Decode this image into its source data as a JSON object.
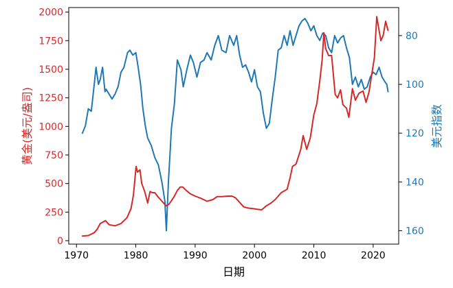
{
  "colors": {
    "gold": "#d62728",
    "dxy": "#1f77b4",
    "frame": "#000000",
    "background": "#ffffff"
  },
  "chart_data": {
    "type": "line",
    "xlabel": "日期",
    "ylabel_left": "黄金(美元/盎司)",
    "ylabel_right": "美元指数",
    "xlim": [
      1968.7,
      2024.3
    ],
    "ylim_left": [
      -30,
      2040
    ],
    "ylim_right": [
      165.5,
      68.5
    ],
    "right_axis_inverted": true,
    "grid": false,
    "legend": "none",
    "x_ticks": [
      1970,
      1980,
      1990,
      2000,
      2010,
      2020
    ],
    "x_tick_labels": [
      "1970",
      "1980",
      "1990",
      "2000",
      "2010",
      "2020"
    ],
    "y_left_ticks": [
      0,
      250,
      500,
      750,
      1000,
      1250,
      1500,
      1750,
      2000
    ],
    "y_left_tick_labels": [
      "0",
      "250",
      "500",
      "750",
      "1000",
      "1250",
      "1500",
      "1750",
      "2000"
    ],
    "y_right_ticks": [
      80,
      100,
      120,
      140,
      160
    ],
    "y_right_tick_labels": [
      "80",
      "100",
      "120",
      "140",
      "160"
    ],
    "series": [
      {
        "color_key": "gold",
        "axis": "left",
        "x": [
          1971.0,
          1972.0,
          1973.0,
          1973.5,
          1974.0,
          1974.9,
          1975.5,
          1976.5,
          1977.5,
          1978.5,
          1979.2,
          1979.6,
          1980.05,
          1980.3,
          1980.7,
          1981.0,
          1981.5,
          1982.0,
          1982.4,
          1982.8,
          1983.2,
          1983.8,
          1984.5,
          1985.1,
          1985.6,
          1986.0,
          1986.5,
          1987.0,
          1987.5,
          1987.9,
          1988.5,
          1989.2,
          1990.0,
          1991.0,
          1992.0,
          1993.0,
          1993.7,
          1994.5,
          1995.5,
          1996.2,
          1996.8,
          1997.5,
          1998.2,
          1999.0,
          1999.8,
          2000.5,
          2001.2,
          2002.0,
          2002.8,
          2003.5,
          2004.5,
          2005.5,
          2006.0,
          2006.4,
          2007.0,
          2007.8,
          2008.2,
          2008.8,
          2009.4,
          2010.0,
          2010.5,
          2011.0,
          2011.4,
          2011.7,
          2012.0,
          2012.5,
          2013.0,
          2013.3,
          2013.6,
          2014.0,
          2014.5,
          2014.9,
          2015.5,
          2015.9,
          2016.5,
          2017.0,
          2017.6,
          2018.3,
          2018.8,
          2019.3,
          2019.8,
          2020.2,
          2020.6,
          2020.9,
          2021.3,
          2021.7,
          2022.1,
          2022.5
        ],
        "values": [
          40,
          45,
          70,
          100,
          150,
          175,
          140,
          130,
          150,
          200,
          280,
          400,
          650,
          600,
          620,
          500,
          430,
          330,
          430,
          420,
          420,
          380,
          340,
          305,
          320,
          350,
          390,
          440,
          470,
          470,
          440,
          410,
          390,
          370,
          345,
          360,
          385,
          385,
          390,
          390,
          375,
          335,
          295,
          285,
          280,
          275,
          270,
          305,
          330,
          360,
          420,
          450,
          550,
          650,
          670,
          800,
          920,
          800,
          900,
          1100,
          1200,
          1400,
          1580,
          1820,
          1680,
          1620,
          1620,
          1450,
          1280,
          1250,
          1320,
          1190,
          1160,
          1080,
          1330,
          1230,
          1290,
          1310,
          1210,
          1300,
          1470,
          1600,
          1960,
          1870,
          1750,
          1800,
          1920,
          1840
        ]
      },
      {
        "color_key": "dxy",
        "axis": "right",
        "x": [
          1971.0,
          1971.5,
          1972.0,
          1972.5,
          1973.0,
          1973.3,
          1973.7,
          1974.0,
          1974.4,
          1974.8,
          1975.0,
          1975.5,
          1976.0,
          1976.5,
          1977.0,
          1977.5,
          1978.0,
          1978.6,
          1979.0,
          1979.5,
          1980.0,
          1980.4,
          1980.8,
          1981.2,
          1981.6,
          1982.0,
          1982.6,
          1983.2,
          1983.8,
          1984.4,
          1984.9,
          1985.15,
          1985.5,
          1986.0,
          1986.5,
          1987.0,
          1987.6,
          1988.0,
          1988.6,
          1989.2,
          1989.7,
          1990.3,
          1990.9,
          1991.5,
          1992.0,
          1992.7,
          1993.3,
          1993.9,
          1994.5,
          1995.2,
          1995.8,
          1996.5,
          1997.0,
          1997.5,
          1998.0,
          1998.5,
          1999.0,
          1999.5,
          2000.0,
          2000.5,
          2001.0,
          2001.5,
          2002.0,
          2002.5,
          2003.0,
          2003.5,
          2004.0,
          2004.5,
          2005.0,
          2005.5,
          2006.0,
          2006.5,
          2007.0,
          2007.5,
          2008.0,
          2008.5,
          2009.0,
          2009.5,
          2010.0,
          2010.5,
          2011.0,
          2011.5,
          2012.0,
          2012.5,
          2013.0,
          2013.5,
          2014.0,
          2014.5,
          2015.0,
          2015.5,
          2016.0,
          2016.5,
          2017.0,
          2017.5,
          2018.0,
          2018.5,
          2019.0,
          2019.5,
          2020.0,
          2020.5,
          2021.0,
          2021.5,
          2022.0,
          2022.3,
          2022.5
        ],
        "values": [
          120,
          117,
          110,
          111,
          100,
          93,
          100,
          98,
          93,
          103,
          102,
          104,
          106,
          104,
          101,
          95,
          93,
          87,
          86,
          88,
          87,
          93,
          100,
          110,
          117,
          122,
          125,
          130,
          133,
          140,
          148,
          160,
          140,
          118,
          108,
          90,
          94,
          101,
          94,
          88,
          91,
          97,
          91,
          90,
          87,
          90,
          84,
          80,
          86,
          87,
          80,
          84,
          80,
          88,
          93,
          92,
          95,
          99,
          94,
          101,
          103,
          112,
          118,
          116,
          106,
          97,
          86,
          85,
          80,
          84,
          78,
          84,
          80,
          76,
          74,
          73,
          75,
          78,
          76,
          80,
          82,
          79,
          80,
          85,
          87,
          80,
          83,
          81,
          80,
          85,
          89,
          100,
          97,
          101,
          98,
          102,
          101,
          97,
          95,
          96,
          93,
          97,
          99,
          100,
          103
        ]
      }
    ]
  }
}
